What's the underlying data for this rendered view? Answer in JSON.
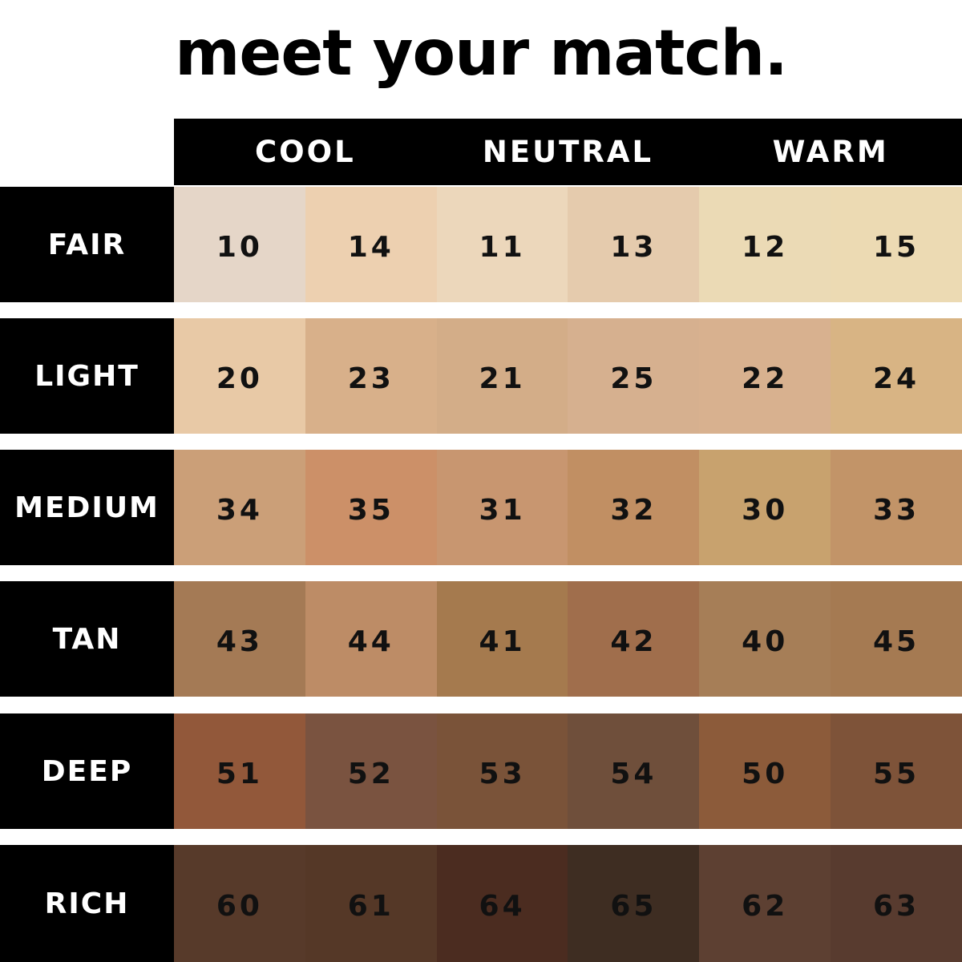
{
  "title": "meet your match.",
  "columns": [
    "COOL",
    "NEUTRAL",
    "WARM"
  ],
  "rows": [
    {
      "label": "FAIR",
      "cells": [
        {
          "shade": "10",
          "color": "#e5d6c8"
        },
        {
          "shade": "14",
          "color": "#edd0b0"
        },
        {
          "shade": "11",
          "color": "#ecd7bb"
        },
        {
          "shade": "13",
          "color": "#e5cbad"
        },
        {
          "shade": "12",
          "color": "#ebdab5"
        },
        {
          "shade": "15",
          "color": "#ecdab3"
        }
      ]
    },
    {
      "label": "LIGHT",
      "cells": [
        {
          "shade": "20",
          "color": "#e8c9a6"
        },
        {
          "shade": "23",
          "color": "#d8b08a"
        },
        {
          "shade": "21",
          "color": "#d3ad88"
        },
        {
          "shade": "25",
          "color": "#d6b08f"
        },
        {
          "shade": "22",
          "color": "#d8b18f"
        },
        {
          "shade": "24",
          "color": "#d8b484"
        }
      ]
    },
    {
      "label": "MEDIUM",
      "cells": [
        {
          "shade": "34",
          "color": "#cb9f78"
        },
        {
          "shade": "35",
          "color": "#cc9068"
        },
        {
          "shade": "31",
          "color": "#c89670"
        },
        {
          "shade": "32",
          "color": "#c18f63"
        },
        {
          "shade": "30",
          "color": "#c8a26e"
        },
        {
          "shade": "33",
          "color": "#c29468"
        }
      ]
    },
    {
      "label": "TAN",
      "cells": [
        {
          "shade": "43",
          "color": "#a47a55"
        },
        {
          "shade": "44",
          "color": "#bd8c66"
        },
        {
          "shade": "41",
          "color": "#a57a4e"
        },
        {
          "shade": "42",
          "color": "#a06e4c"
        },
        {
          "shade": "40",
          "color": "#a67e57"
        },
        {
          "shade": "45",
          "color": "#a57a52"
        }
      ]
    },
    {
      "label": "DEEP",
      "cells": [
        {
          "shade": "51",
          "color": "#92583a"
        },
        {
          "shade": "52",
          "color": "#7a5340"
        },
        {
          "shade": "53",
          "color": "#7a5339"
        },
        {
          "shade": "54",
          "color": "#6f4f3b"
        },
        {
          "shade": "50",
          "color": "#8c5b3a"
        },
        {
          "shade": "55",
          "color": "#7e5339"
        }
      ]
    },
    {
      "label": "RICH",
      "cells": [
        {
          "shade": "60",
          "color": "#573a2a"
        },
        {
          "shade": "61",
          "color": "#553827"
        },
        {
          "shade": "64",
          "color": "#4b2c20"
        },
        {
          "shade": "65",
          "color": "#3e2d22"
        },
        {
          "shade": "62",
          "color": "#5d4032"
        },
        {
          "shade": "63",
          "color": "#583b2f"
        }
      ]
    }
  ]
}
